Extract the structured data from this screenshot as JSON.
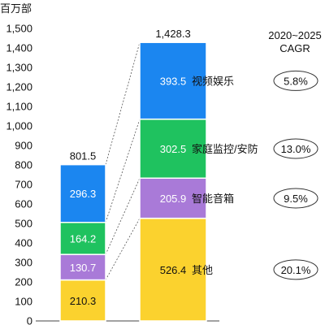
{
  "chart_data": {
    "type": "bar",
    "stacked": true,
    "unit_label": "百万部",
    "ylim": [
      0,
      1500
    ],
    "yticks": [
      0,
      100,
      200,
      300,
      400,
      500,
      600,
      700,
      800,
      900,
      1000,
      1100,
      1200,
      1300,
      1400,
      1500
    ],
    "ytick_labels": [
      "0",
      "100",
      "200",
      "300",
      "400",
      "500",
      "600",
      "700",
      "800",
      "900",
      "1,000",
      "1,100",
      "1,200",
      "1,300",
      "1,400",
      "1,500"
    ],
    "categories": [
      "",
      ""
    ],
    "series": [
      {
        "name": "其他",
        "color": "#fbd22e",
        "values": [
          210.3,
          526.4
        ],
        "labels": [
          "210.3",
          "526.4"
        ],
        "cagr": "20.1%"
      },
      {
        "name": "智能音箱",
        "color": "#a97ad8",
        "values": [
          130.7,
          205.9
        ],
        "labels": [
          "130.7",
          "205.9"
        ],
        "cagr": "9.5%"
      },
      {
        "name": "家庭监控/安防",
        "color": "#1fc25f",
        "values": [
          164.2,
          302.5
        ],
        "labels": [
          "164.2",
          "302.5"
        ],
        "cagr": "13.0%"
      },
      {
        "name": "视频娱乐",
        "color": "#1b86f0",
        "values": [
          296.3,
          393.5
        ],
        "labels": [
          "296.3",
          "393.5"
        ],
        "cagr": "5.8%"
      }
    ],
    "totals": [
      "801.5",
      "1,428.3"
    ],
    "cagr_header": [
      "2020~2025",
      "CAGR"
    ],
    "grid": false,
    "connector_lines": "dashed"
  }
}
